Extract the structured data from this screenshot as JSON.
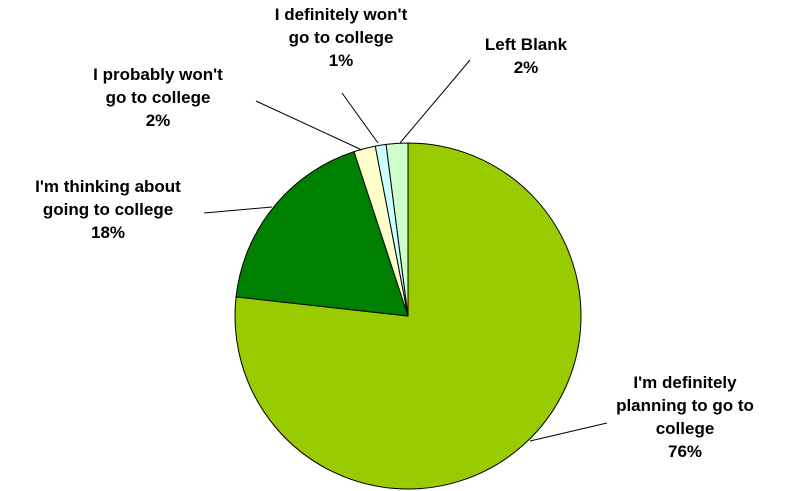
{
  "chart_data": {
    "type": "pie",
    "slices": [
      {
        "label": [
          "I'm definitely",
          "planning to go to",
          "college"
        ],
        "value": 76,
        "display": "76%",
        "color": "#99cc00"
      },
      {
        "label": [
          "I'm thinking about",
          "going to college"
        ],
        "value": 18,
        "display": "18%",
        "color": "#008000"
      },
      {
        "label": [
          "I probably won't",
          "go to college"
        ],
        "value": 2,
        "display": "2%",
        "color": "#ffffcc"
      },
      {
        "label": [
          "I definitely won't",
          "go to college"
        ],
        "value": 1,
        "display": "1%",
        "color": "#ccffff"
      },
      {
        "label": [
          "Left Blank"
        ],
        "value": 2,
        "display": "2%",
        "color": "#ccffcc"
      }
    ],
    "start": "12 o'clock",
    "direction": "clockwise",
    "legend": "none"
  }
}
